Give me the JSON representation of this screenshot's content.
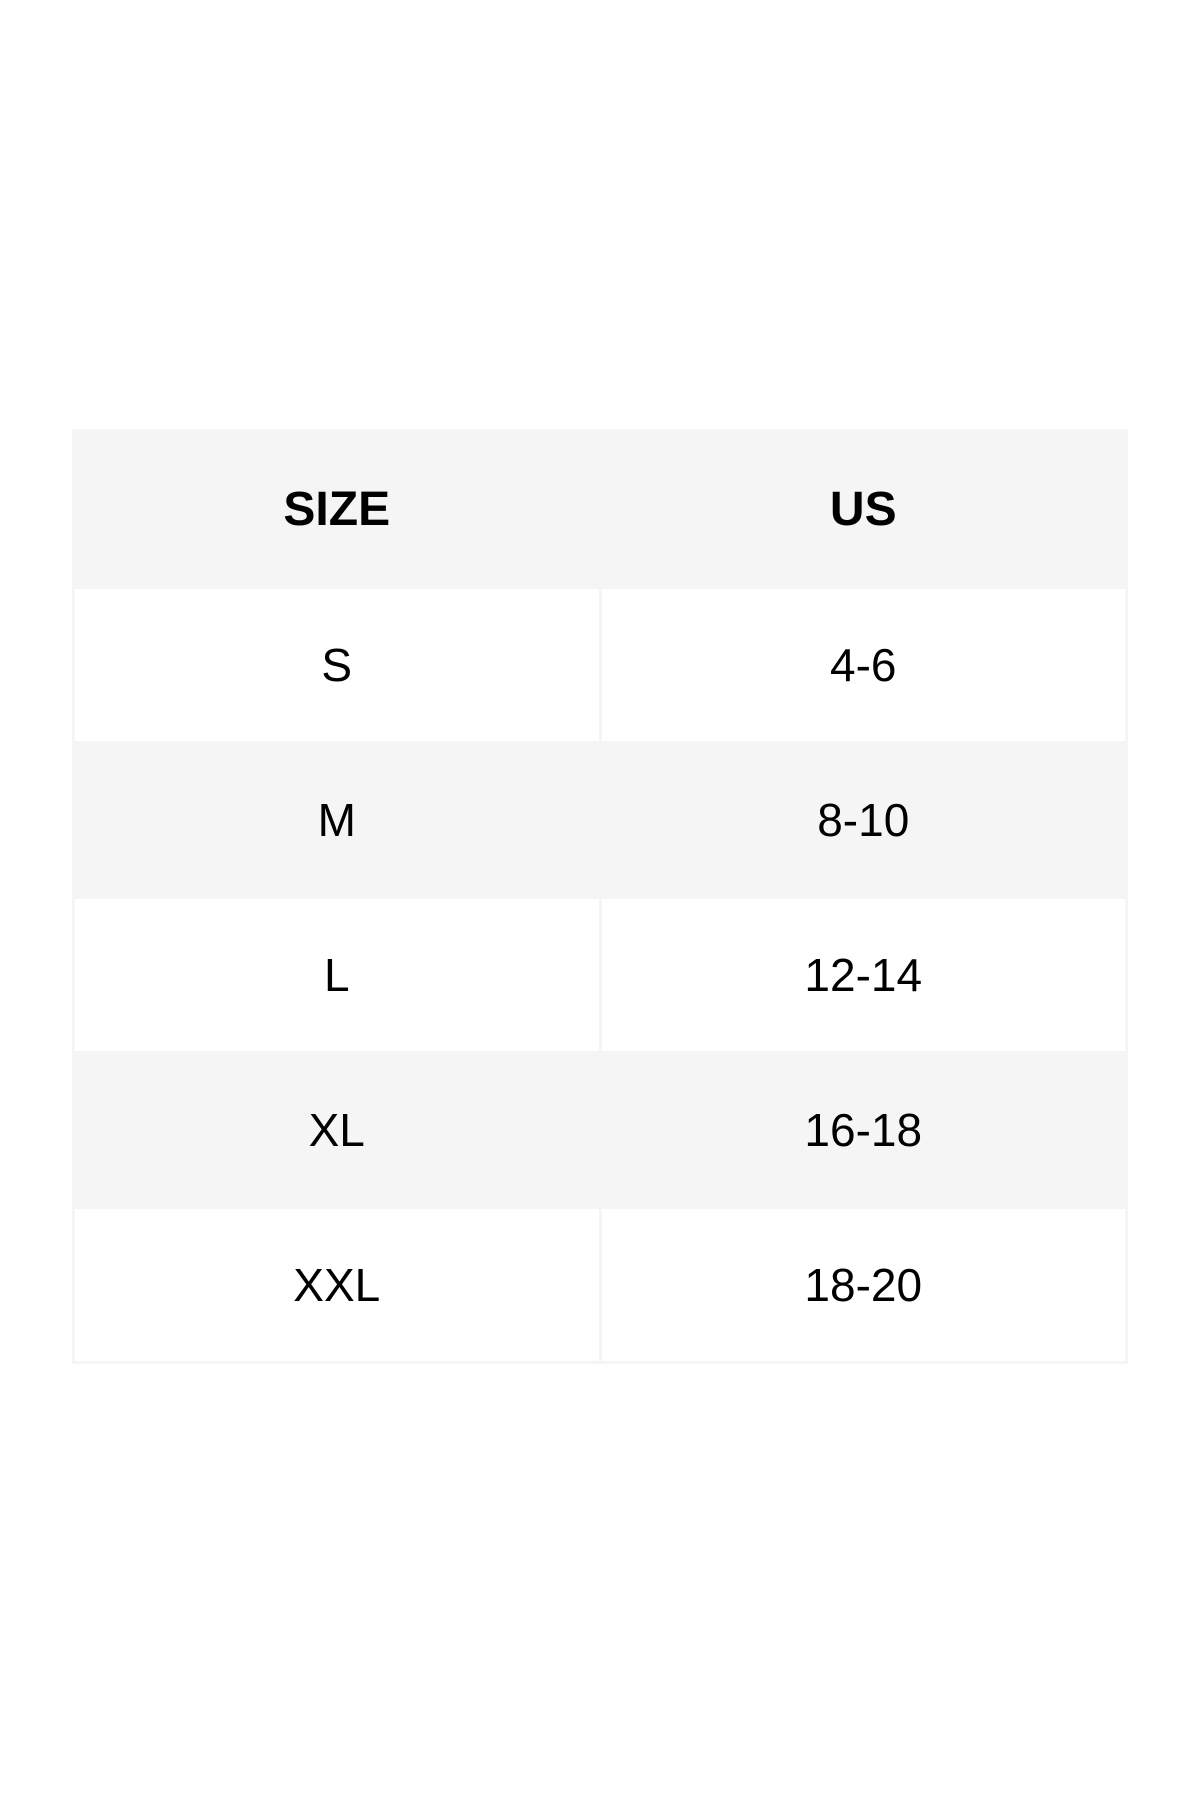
{
  "table": {
    "headers": [
      "SIZE",
      "US"
    ],
    "rows": [
      [
        "S",
        "4-6"
      ],
      [
        "M",
        "8-10"
      ],
      [
        "L",
        "12-14"
      ],
      [
        "XL",
        "16-18"
      ],
      [
        "XXL",
        "18-20"
      ]
    ]
  },
  "colors": {
    "header_bg": "#f5f5f5",
    "alt_row_bg": "#f5f5f5",
    "row_bg": "#ffffff",
    "text": "#000000"
  }
}
